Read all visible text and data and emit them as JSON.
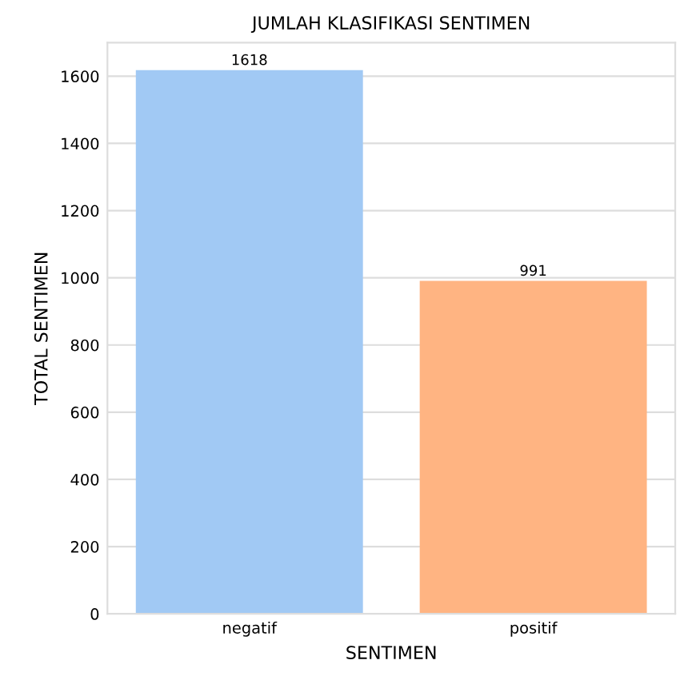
{
  "chart_data": {
    "type": "bar",
    "title": "JUMLAH KLASIFIKASI SENTIMEN",
    "xlabel": "SENTIMEN",
    "ylabel": "TOTAL SENTIMEN",
    "categories": [
      "negatif",
      "positif"
    ],
    "values": [
      1618,
      991
    ],
    "colors": [
      "#a1c9f4",
      "#ffb482"
    ],
    "ylim": [
      0,
      1700
    ],
    "yticks": [
      0,
      200,
      400,
      600,
      800,
      1000,
      1200,
      1400,
      1600
    ],
    "grid": "y",
    "data_labels": true
  }
}
